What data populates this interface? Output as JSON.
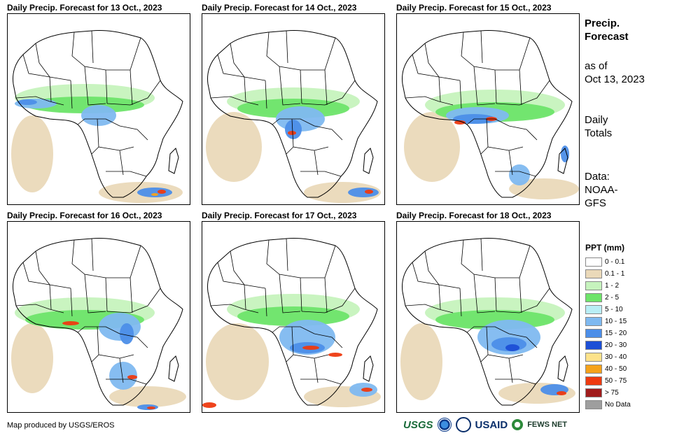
{
  "panels": [
    {
      "title": "Daily Precip. Forecast for 13 Oct., 2023"
    },
    {
      "title": "Daily Precip. Forecast for 14 Oct., 2023"
    },
    {
      "title": "Daily Precip. Forecast for 15 Oct., 2023"
    },
    {
      "title": "Daily Precip. Forecast for 16 Oct., 2023"
    },
    {
      "title": "Daily Precip. Forecast for 17 Oct., 2023"
    },
    {
      "title": "Daily Precip. Forecast for 18 Oct., 2023"
    }
  ],
  "side": {
    "title_line1": "Precip.",
    "title_line2": "Forecast",
    "asof_line1": "as of",
    "asof_line2": "Oct 13, 2023",
    "totals_line1": "Daily",
    "totals_line2": "Totals",
    "data_line1": "Data:",
    "data_line2": "NOAA-",
    "data_line3": "GFS"
  },
  "legend": {
    "title": "PPT (mm)",
    "items": [
      {
        "label": "0 - 0.1",
        "color": "#ffffff"
      },
      {
        "label": "0.1 - 1",
        "color": "#ead9b9"
      },
      {
        "label": "1 - 2",
        "color": "#c6f3bd"
      },
      {
        "label": "2 - 5",
        "color": "#6ee46a"
      },
      {
        "label": "5 - 10",
        "color": "#b9eef5"
      },
      {
        "label": "10 - 15",
        "color": "#7fb9f0"
      },
      {
        "label": "15 - 20",
        "color": "#4c8ee8"
      },
      {
        "label": "20 - 30",
        "color": "#1c4fd6"
      },
      {
        "label": "30 - 40",
        "color": "#fde28a"
      },
      {
        "label": "40 - 50",
        "color": "#f5a21a"
      },
      {
        "label": "50 - 75",
        "color": "#ee3a10"
      },
      {
        "label": "> 75",
        "color": "#a01c1c"
      },
      {
        "label": "No Data",
        "color": "#9e9e9e"
      }
    ]
  },
  "credit": "Map produced by USGS/EROS",
  "logos": {
    "usgs": "USGS",
    "usaid": "USAID",
    "fews": "FEWS NET"
  }
}
